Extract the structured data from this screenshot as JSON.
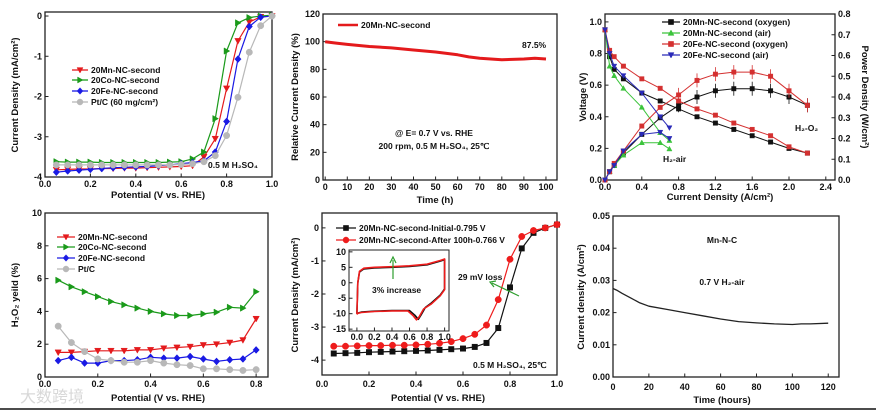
{
  "watermark": "大数跨境",
  "chart_data": [
    {
      "id": "lsv-catalysts",
      "type": "line",
      "xlabel": "Potential (V vs. RHE)",
      "ylabel": "Current Density (mA/cm²)",
      "xlim": [
        0,
        1
      ],
      "ylim": [
        -4,
        0.1
      ],
      "xticks": [
        0,
        0.2,
        0.4,
        0.6,
        0.8,
        1.0
      ],
      "xtick_labels": [
        "0.0",
        "0.2",
        "0.4",
        "0.6",
        "0.8",
        "1.0"
      ],
      "yticks": [
        -4,
        -3,
        -2,
        -1,
        0
      ],
      "ytick_labels": [
        "-4",
        "-3",
        "-2",
        "-1",
        "0"
      ],
      "x": [
        0.05,
        0.1,
        0.15,
        0.2,
        0.25,
        0.3,
        0.35,
        0.4,
        0.45,
        0.5,
        0.55,
        0.6,
        0.65,
        0.7,
        0.75,
        0.8,
        0.85,
        0.9,
        0.95,
        1.0
      ],
      "series": [
        {
          "name": "20Mn-NC-second",
          "color": "#e41a1c",
          "marker": "down-triangle",
          "values": [
            -3.82,
            -3.81,
            -3.8,
            -3.8,
            -3.79,
            -3.79,
            -3.78,
            -3.78,
            -3.77,
            -3.76,
            -3.75,
            -3.74,
            -3.72,
            -3.5,
            -3.05,
            -1.8,
            -0.62,
            -0.15,
            -0.02,
            0
          ]
        },
        {
          "name": "20Co-NC-second",
          "color": "#1a9a1a",
          "marker": "right-triangle",
          "values": [
            -3.62,
            -3.63,
            -3.63,
            -3.63,
            -3.64,
            -3.64,
            -3.64,
            -3.64,
            -3.64,
            -3.64,
            -3.63,
            -3.62,
            -3.55,
            -3.38,
            -2.55,
            -0.87,
            -0.17,
            -0.04,
            0,
            0.02
          ]
        },
        {
          "name": "20Fe-NC-second",
          "color": "#1a1ae4",
          "marker": "diamond",
          "values": [
            -3.88,
            -3.85,
            -3.83,
            -3.81,
            -3.79,
            -3.77,
            -3.76,
            -3.75,
            -3.74,
            -3.72,
            -3.7,
            -3.67,
            -3.64,
            -3.6,
            -3.38,
            -2.62,
            -1.07,
            -0.26,
            -0.03,
            0
          ]
        },
        {
          "name": "Pt/C (60 mg/cm²)",
          "color": "#b8b8b8",
          "marker": "circle",
          "values": [
            -3.7,
            -3.7,
            -3.7,
            -3.7,
            -3.7,
            -3.7,
            -3.7,
            -3.7,
            -3.7,
            -3.7,
            -3.7,
            -3.69,
            -3.67,
            -3.62,
            -3.47,
            -2.97,
            -2.02,
            -0.9,
            -0.24,
            0
          ]
        }
      ],
      "annotations": [
        {
          "text": "0.5 M H₂SO₄",
          "color": "#111"
        }
      ]
    },
    {
      "id": "stability-relative-current",
      "type": "line",
      "xlabel": "Time (h)",
      "ylabel": "Relative Current Density (%)",
      "xlim": [
        -1,
        105
      ],
      "ylim": [
        0,
        120
      ],
      "xticks": [
        0,
        10,
        20,
        30,
        40,
        50,
        60,
        70,
        80,
        90,
        100
      ],
      "xtick_labels": [
        "0",
        "10",
        "20",
        "30",
        "40",
        "50",
        "60",
        "70",
        "80",
        "90",
        "100"
      ],
      "yticks": [
        0,
        20,
        40,
        60,
        80,
        100,
        120
      ],
      "ytick_labels": [
        "0",
        "20",
        "40",
        "60",
        "80",
        "100",
        "120"
      ],
      "x": [
        0,
        5,
        10,
        20,
        30,
        40,
        50,
        60,
        65,
        70,
        80,
        90,
        95,
        100
      ],
      "series": [
        {
          "name": "20Mn-NC-second",
          "color": "#e41a1c",
          "marker": "none",
          "values": [
            100,
            99,
            98,
            96.5,
            95.5,
            94,
            92.5,
            90.5,
            89,
            88,
            87,
            87.5,
            88,
            87.5
          ]
        }
      ],
      "annotations": [
        {
          "text": "87.5%",
          "color": "#e41a1c"
        },
        {
          "text": "@ E= 0.7 V vs. RHE",
          "color": "#111"
        },
        {
          "text": "200 rpm, 0.5 M H₂SO₄, 25℃",
          "color": "#111"
        }
      ]
    },
    {
      "id": "fuel-cell-polarization",
      "type": "line",
      "xlabel": "Current Density (A/cm²)",
      "ylabel": "Voltage (V)",
      "y2label": "Power Density (W/cm²)",
      "xlim": [
        0,
        2.5
      ],
      "ylim": [
        0,
        1.05
      ],
      "y2lim": [
        0,
        0.8
      ],
      "xticks": [
        0,
        0.4,
        0.8,
        1.2,
        1.6,
        2.0,
        2.4
      ],
      "xtick_labels": [
        "0.0",
        "0.4",
        "0.8",
        "1.2",
        "1.6",
        "2.0",
        "2.4"
      ],
      "yticks": [
        0,
        0.2,
        0.4,
        0.6,
        0.8,
        1.0
      ],
      "ytick_labels": [
        "0.0",
        "0.2",
        "0.4",
        "0.6",
        "0.8",
        "1.0"
      ],
      "y2ticks": [
        0,
        0.1,
        0.2,
        0.3,
        0.4,
        0.5,
        0.6,
        0.7,
        0.8
      ],
      "y2tick_labels": [
        "0.0",
        "0.1",
        "0.2",
        "0.3",
        "0.4",
        "0.5",
        "0.6",
        "0.7",
        "0.8"
      ],
      "series": [
        {
          "name": "20Mn-NC-second (oxygen)",
          "color": "#111111",
          "marker": "square",
          "x": [
            0,
            0.05,
            0.1,
            0.2,
            0.4,
            0.6,
            0.8,
            1.0,
            1.2,
            1.4,
            1.6,
            1.8,
            2.0,
            2.2
          ],
          "voltage": [
            0.95,
            0.78,
            0.7,
            0.64,
            0.55,
            0.5,
            0.45,
            0.4,
            0.36,
            0.32,
            0.28,
            0.24,
            0.2,
            0.17
          ],
          "power": [
            0,
            0.04,
            0.07,
            0.13,
            0.22,
            0.3,
            0.36,
            0.4,
            0.43,
            0.44,
            0.44,
            0.43,
            0.4,
            0.36
          ]
        },
        {
          "name": "20Mn-NC-second (air)",
          "color": "#3cc43c",
          "marker": "up-triangle",
          "x": [
            0,
            0.05,
            0.1,
            0.2,
            0.4,
            0.6,
            0.7
          ],
          "voltage": [
            0.95,
            0.72,
            0.66,
            0.58,
            0.46,
            0.3,
            0.25
          ],
          "power": [
            0,
            0.04,
            0.07,
            0.12,
            0.18,
            0.18,
            0.15
          ]
        },
        {
          "name": "20Fe-NC-second (oxygen)",
          "color": "#d43030",
          "marker": "square",
          "x": [
            0,
            0.05,
            0.1,
            0.2,
            0.4,
            0.6,
            0.8,
            1.0,
            1.2,
            1.4,
            1.6,
            1.8,
            2.0,
            2.2
          ],
          "voltage": [
            0.95,
            0.82,
            0.78,
            0.72,
            0.64,
            0.58,
            0.5,
            0.45,
            0.41,
            0.36,
            0.32,
            0.28,
            0.21,
            0.17
          ],
          "power": [
            0,
            0.04,
            0.08,
            0.14,
            0.26,
            0.35,
            0.41,
            0.48,
            0.51,
            0.52,
            0.52,
            0.5,
            0.43,
            0.36
          ]
        },
        {
          "name": "20Fe-NC-second (air)",
          "color": "#2a2ab8",
          "marker": "down-triangle",
          "x": [
            0,
            0.05,
            0.1,
            0.2,
            0.4,
            0.6,
            0.7
          ],
          "voltage": [
            0.95,
            0.8,
            0.72,
            0.66,
            0.55,
            0.4,
            0.33
          ],
          "power": [
            0,
            0.04,
            0.07,
            0.14,
            0.22,
            0.23,
            0.2
          ]
        }
      ],
      "annotations": [
        {
          "text": "H₂-air",
          "color": "#111"
        },
        {
          "text": "H₂-O₂",
          "color": "#111"
        }
      ]
    },
    {
      "id": "h2o2-yield",
      "type": "line",
      "xlabel": "Potential (V vs. RHE)",
      "ylabel": "H₂O₂ yeild (%)",
      "xlim": [
        0,
        0.845
      ],
      "ylim": [
        0,
        10
      ],
      "xticks": [
        0,
        0.2,
        0.4,
        0.6,
        0.8
      ],
      "xtick_labels": [
        "0.0",
        "0.2",
        "0.4",
        "0.6",
        "0.8"
      ],
      "yticks": [
        0,
        2,
        4,
        6,
        8,
        10
      ],
      "ytick_labels": [
        "0",
        "2",
        "4",
        "6",
        "8",
        "10"
      ],
      "x": [
        0.05,
        0.1,
        0.15,
        0.2,
        0.25,
        0.3,
        0.35,
        0.4,
        0.45,
        0.5,
        0.55,
        0.6,
        0.65,
        0.7,
        0.75,
        0.8
      ],
      "series": [
        {
          "name": "20Mn-NC-second",
          "color": "#e41a1c",
          "marker": "down-triangle",
          "values": [
            1.5,
            1.5,
            1.55,
            1.6,
            1.6,
            1.6,
            1.65,
            1.65,
            1.75,
            1.8,
            1.85,
            1.95,
            2.0,
            2.1,
            2.25,
            3.55
          ]
        },
        {
          "name": "20Co-NC-second",
          "color": "#1a9a1a",
          "marker": "right-triangle",
          "values": [
            5.9,
            5.5,
            5.2,
            4.9,
            4.6,
            4.4,
            4.2,
            4.0,
            3.85,
            3.75,
            3.75,
            3.85,
            3.95,
            4.25,
            4.2,
            5.2
          ]
        },
        {
          "name": "20Fe-NC-second",
          "color": "#1a1ae4",
          "marker": "diamond",
          "values": [
            1.0,
            1.2,
            0.85,
            0.85,
            1.0,
            1.0,
            1.05,
            1.2,
            1.15,
            1.15,
            1.25,
            1.1,
            0.95,
            1.05,
            1.1,
            1.65
          ]
        },
        {
          "name": "Pt/C",
          "color": "#b8b8b8",
          "marker": "circle",
          "values": [
            3.1,
            2.1,
            1.55,
            1.1,
            1.0,
            0.9,
            0.9,
            1.0,
            0.85,
            0.75,
            0.7,
            0.5,
            0.5,
            0.45,
            0.4,
            0.45
          ]
        }
      ],
      "annotations": []
    },
    {
      "id": "lsv-before-after",
      "type": "line",
      "xlabel": "Potential (V vs. RHE)",
      "ylabel": "Current Density (mA/cm²)",
      "xlim": [
        0,
        1
      ],
      "ylim": [
        -4.45,
        0.45
      ],
      "xticks": [
        0,
        0.2,
        0.4,
        0.6,
        0.8,
        1.0
      ],
      "xtick_labels": [
        "0.0",
        "0.2",
        "0.4",
        "0.6",
        "0.8",
        "1.0"
      ],
      "yticks": [
        -4,
        -3,
        -2,
        -1,
        0
      ],
      "ytick_labels": [
        "-4",
        "-3",
        "-2",
        "-1",
        "0"
      ],
      "x": [
        0.05,
        0.1,
        0.15,
        0.2,
        0.25,
        0.3,
        0.35,
        0.4,
        0.45,
        0.5,
        0.55,
        0.6,
        0.65,
        0.7,
        0.75,
        0.8,
        0.85,
        0.9,
        0.95,
        1.0
      ],
      "series": [
        {
          "name": "20Mn-NC-second-Initial-0.795 V",
          "color": "#111111",
          "marker": "square",
          "values": [
            -3.8,
            -3.79,
            -3.78,
            -3.76,
            -3.75,
            -3.74,
            -3.73,
            -3.72,
            -3.71,
            -3.69,
            -3.67,
            -3.65,
            -3.6,
            -3.48,
            -3.03,
            -1.8,
            -0.62,
            -0.15,
            0,
            0.1
          ]
        },
        {
          "name": "20Mn-NC-second-After 100h-0.766 V",
          "color": "#ee1c1c",
          "marker": "circle",
          "values": [
            -3.58,
            -3.58,
            -3.57,
            -3.56,
            -3.56,
            -3.55,
            -3.55,
            -3.54,
            -3.52,
            -3.49,
            -3.44,
            -3.35,
            -3.22,
            -2.94,
            -2.17,
            -0.95,
            -0.26,
            -0.08,
            0,
            0.1
          ]
        }
      ],
      "inset": {
        "type": "line",
        "xlim": [
          -0.09,
          1.05
        ],
        "ylim": [
          -15.6,
          10.6
        ],
        "xticks": [
          0,
          0.2,
          0.4,
          0.6,
          0.8,
          1.0
        ],
        "xtick_labels": [
          "0.0",
          "0.2",
          "0.4",
          "0.6",
          "0.8",
          "1.0"
        ],
        "yticks": [
          -15,
          -10,
          -5,
          0,
          5,
          10
        ],
        "ytick_labels": [
          "-15",
          "-10",
          "-5",
          "0",
          "5",
          "10"
        ],
        "series": [
          {
            "name": "initial",
            "color": "#111111",
            "x": [
              0,
              0.01,
              0.03,
              0.08,
              0.2,
              0.4,
              0.6,
              0.8,
              0.95,
              1.0,
              1.0,
              0.95,
              0.85,
              0.78,
              0.73,
              0.7,
              0.66,
              0.6,
              0.4,
              0.2,
              0.05,
              0.01,
              0
            ],
            "y": [
              -10,
              0,
              3.5,
              4.5,
              4.8,
              5,
              5.3,
              5.8,
              7,
              7.5,
              -2,
              -4,
              -6.5,
              -8,
              -10.5,
              -11.8,
              -10.5,
              -9,
              -9,
              -9.2,
              -9.5,
              -9.8,
              -10
            ]
          },
          {
            "name": "after",
            "color": "#ee1c1c",
            "x": [
              0,
              0.01,
              0.03,
              0.08,
              0.2,
              0.4,
              0.6,
              0.8,
              0.95,
              1.0,
              1.0,
              0.95,
              0.85,
              0.76,
              0.71,
              0.68,
              0.64,
              0.58,
              0.4,
              0.2,
              0.05,
              0.01,
              0
            ],
            "y": [
              -10.2,
              0,
              3.7,
              4.7,
              5,
              5.2,
              5.5,
              6,
              7.2,
              7.7,
              -2.2,
              -4.2,
              -6.8,
              -8.5,
              -11,
              -12,
              -10.6,
              -9.1,
              -9.1,
              -9.3,
              -9.6,
              -9.9,
              -10.2
            ]
          }
        ]
      },
      "annotations": [
        {
          "text": "3% increase",
          "color": "#2e9e2e"
        },
        {
          "text": "29 mV loss",
          "color": "#2e9e2e"
        },
        {
          "text": "0.5 M H₂SO₄, 25℃",
          "color": "#111"
        }
      ]
    },
    {
      "id": "fuel-cell-durability",
      "type": "line",
      "xlabel": "Time (hours)",
      "ylabel": "Current density (A/cm²)",
      "xlim": [
        0,
        126
      ],
      "ylim": [
        0,
        0.05
      ],
      "xticks": [
        0,
        20,
        40,
        60,
        80,
        100,
        120
      ],
      "xtick_labels": [
        "0",
        "20",
        "40",
        "60",
        "80",
        "100",
        "120"
      ],
      "yticks": [
        0,
        0.01,
        0.02,
        0.03,
        0.04,
        0.05
      ],
      "ytick_labels": [
        "0.00",
        "0.01",
        "0.02",
        "0.03",
        "0.04",
        "0.05"
      ],
      "x": [
        0,
        2,
        5,
        10,
        15,
        20,
        30,
        40,
        50,
        60,
        70,
        80,
        90,
        100,
        105,
        110,
        120
      ],
      "series": [
        {
          "name": "Mn-N-C",
          "color": "#222222",
          "marker": "none",
          "values": [
            0.0275,
            0.027,
            0.026,
            0.0245,
            0.023,
            0.022,
            0.021,
            0.02,
            0.019,
            0.018,
            0.0172,
            0.0168,
            0.0165,
            0.0163,
            0.0165,
            0.0165,
            0.0167
          ]
        }
      ],
      "annotations": [
        {
          "text": "Mn-N-C",
          "color": "#111"
        },
        {
          "text": "0.7 V H₂-air",
          "color": "#e8282e"
        }
      ]
    }
  ]
}
